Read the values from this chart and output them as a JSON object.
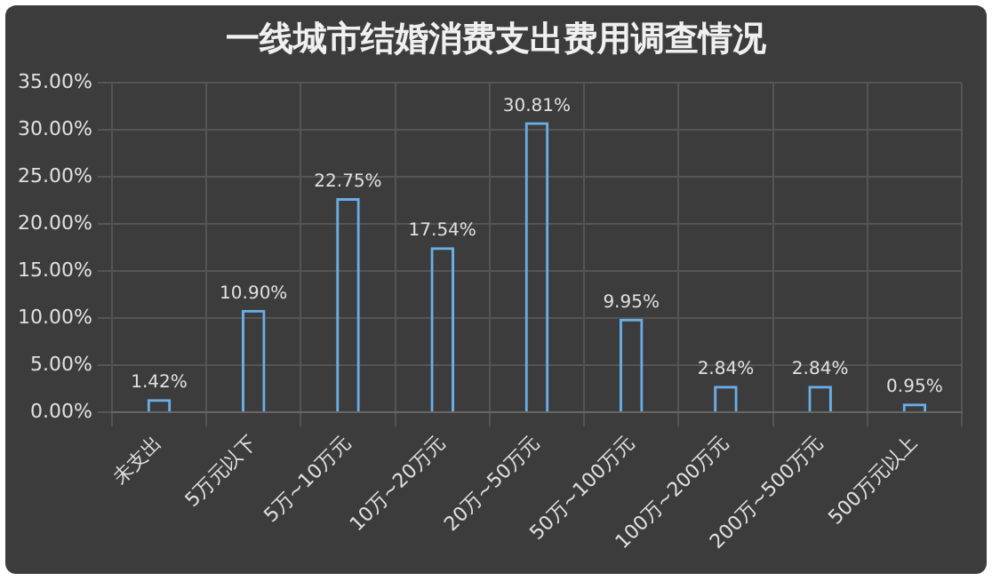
{
  "chart_data": {
    "type": "bar",
    "title": "一线城市结婚消费支出费用调查情况",
    "categories": [
      "未支出",
      "5万元以下",
      "5万~10万元",
      "10万~20万元",
      "20万~50万元",
      "50万~100万元",
      "100万~200万元",
      "200万~500万元",
      "500万元以上"
    ],
    "values": [
      1.42,
      10.9,
      22.75,
      17.54,
      30.81,
      9.95,
      2.84,
      2.84,
      0.95
    ],
    "value_labels": [
      "1.42%",
      "10.90%",
      "22.75%",
      "17.54%",
      "30.81%",
      "9.95%",
      "2.84%",
      "2.84%",
      "0.95%"
    ],
    "color": "#6aaee8",
    "ylim": [
      0,
      35
    ],
    "yticks": [
      {
        "value": 0,
        "label": "0.00%"
      },
      {
        "value": 5,
        "label": "5.00%"
      },
      {
        "value": 10,
        "label": "10.00%"
      },
      {
        "value": 15,
        "label": "15.00%"
      },
      {
        "value": 20,
        "label": "20.00%"
      },
      {
        "value": 25,
        "label": "25.00%"
      },
      {
        "value": 30,
        "label": "30.00%"
      },
      {
        "value": 35,
        "label": "35.00%"
      }
    ],
    "grid": true
  }
}
